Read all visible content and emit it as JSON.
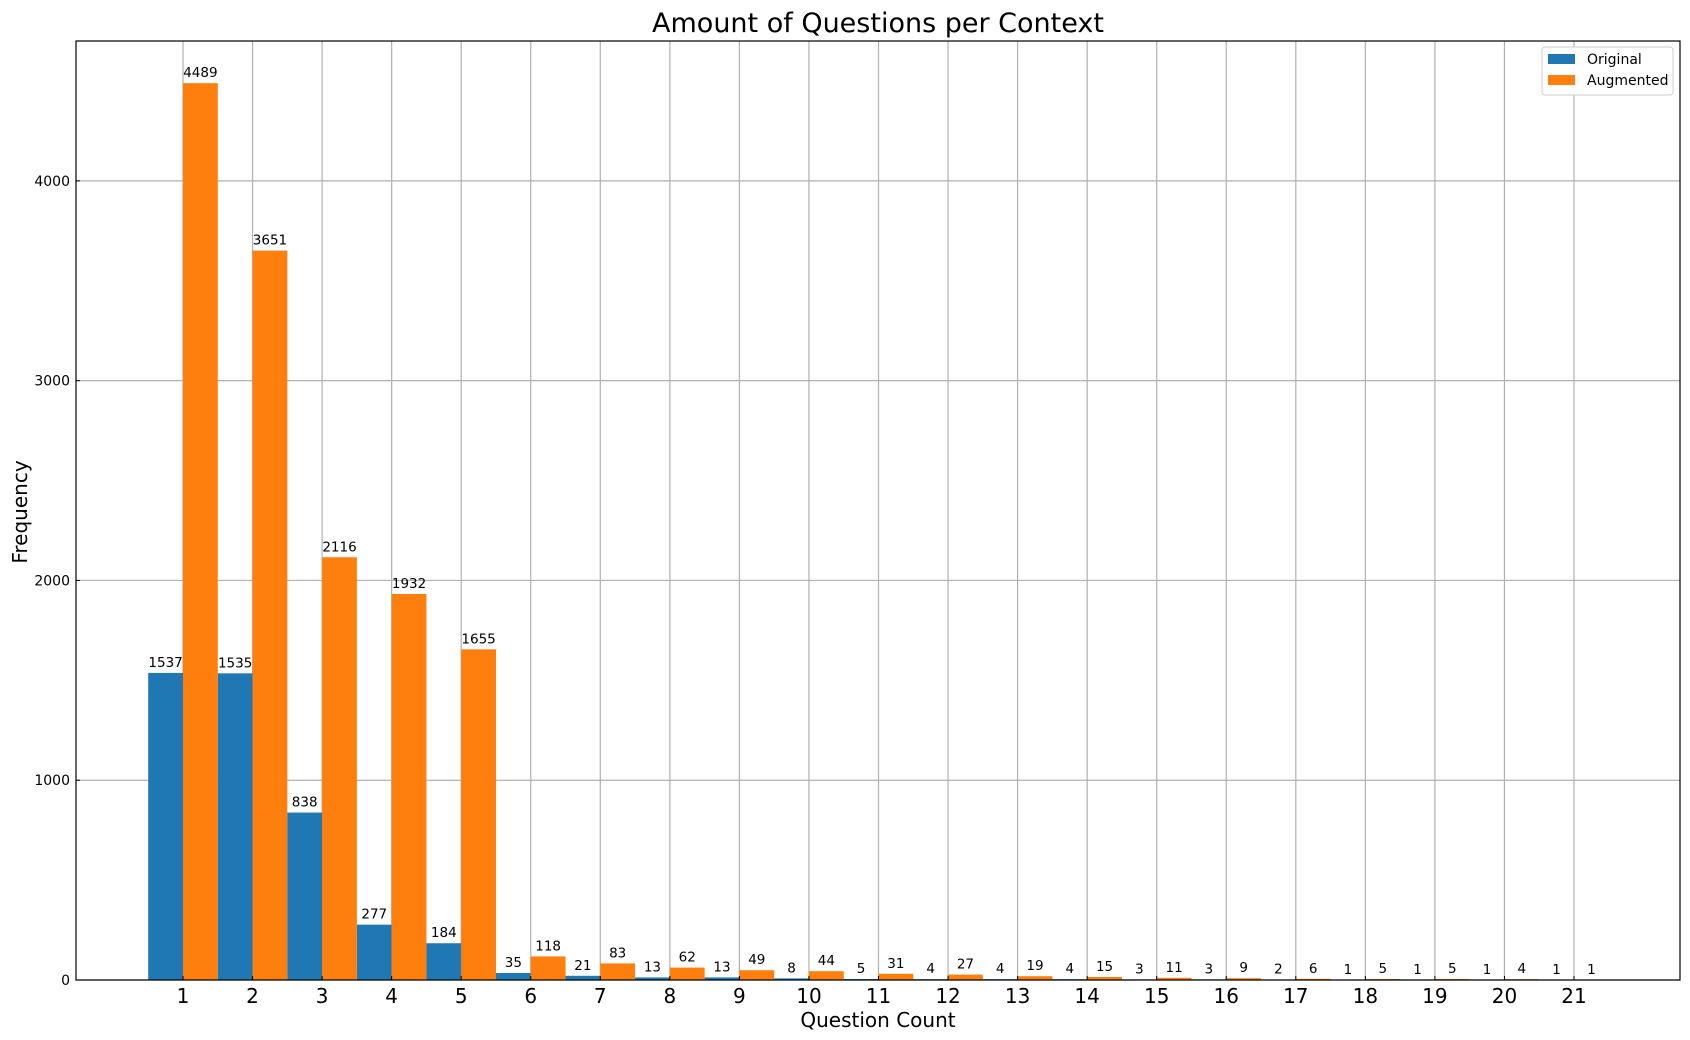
{
  "chart_data": {
    "type": "bar",
    "title": "Amount of Questions per Context",
    "xlabel": "Question Count",
    "ylabel": "Frequency",
    "categories": [
      "1",
      "2",
      "3",
      "4",
      "5",
      "6",
      "7",
      "8",
      "9",
      "10",
      "11",
      "12",
      "13",
      "14",
      "15",
      "16",
      "17",
      "18",
      "19",
      "20",
      "21"
    ],
    "series": [
      {
        "name": "Original",
        "color": "#1f77b4",
        "values": [
          1537,
          1535,
          838,
          277,
          184,
          35,
          21,
          13,
          13,
          8,
          5,
          4,
          4,
          4,
          3,
          3,
          2,
          1,
          1,
          1,
          1
        ]
      },
      {
        "name": "Augmented",
        "color": "#ff7f0e",
        "values": [
          4489,
          3651,
          2116,
          1932,
          1655,
          118,
          83,
          62,
          49,
          44,
          31,
          27,
          19,
          15,
          11,
          9,
          6,
          5,
          5,
          4,
          1
        ]
      }
    ],
    "ylim": [
      0,
      4700
    ],
    "yticks": [
      0,
      1000,
      2000,
      3000,
      4000
    ],
    "grid": true,
    "legend_position": "top-right"
  }
}
